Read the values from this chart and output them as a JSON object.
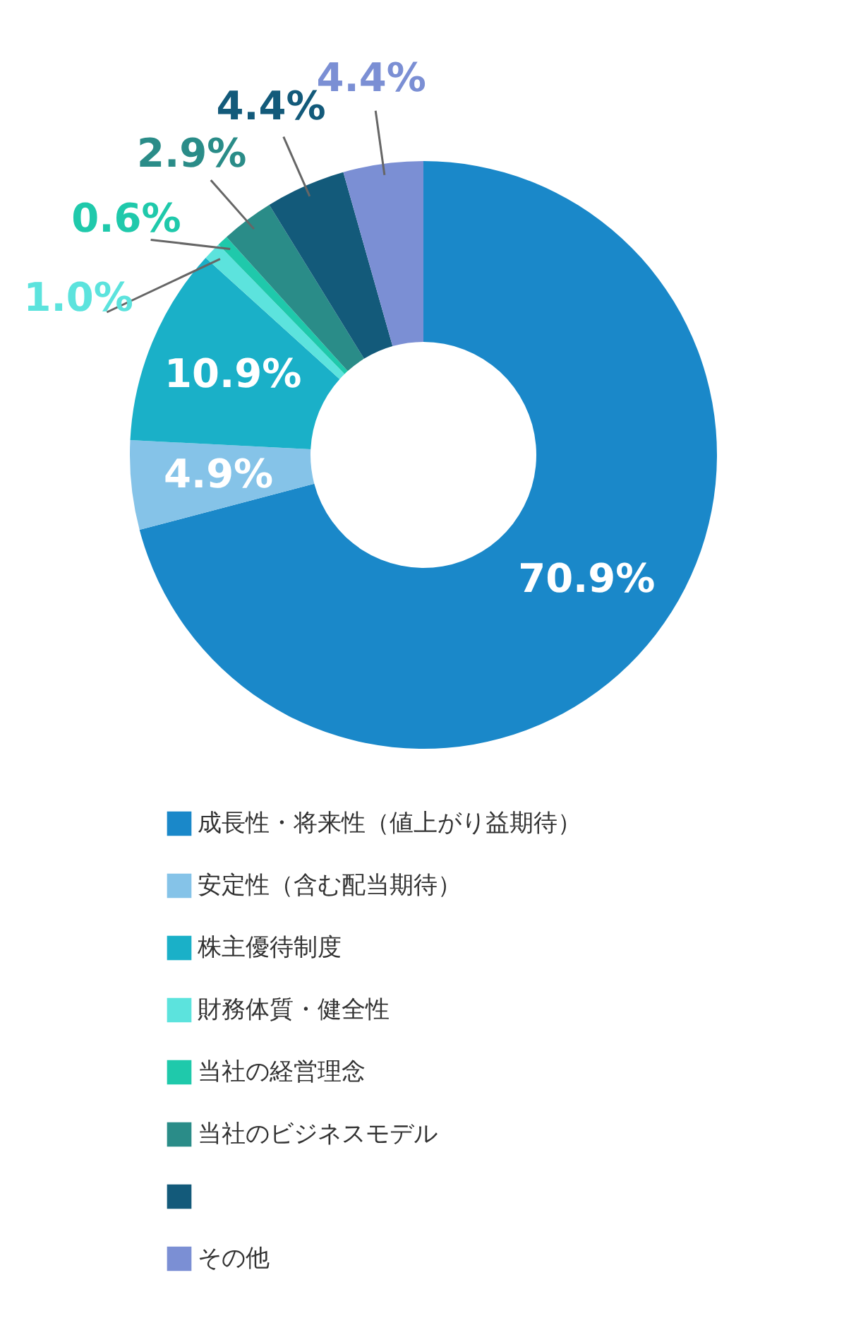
{
  "chart_data": {
    "type": "donut",
    "categories": [
      "成長性・将来性（値上がり益期待）",
      "安定性（含む配当期待）",
      "株主優待制度",
      "財務体質・健全性",
      "当社の経営理念",
      "当社のビジネスモデル",
      null,
      "その他"
    ],
    "values": [
      70.9,
      4.9,
      10.9,
      1.0,
      0.6,
      2.9,
      4.4,
      4.4
    ],
    "colors": [
      "#1a88c9",
      "#85c3e8",
      "#1ab0c8",
      "#5ce3dd",
      "#1fc9ab",
      "#2a8c88",
      "#135a7a",
      "#7b8fd4"
    ],
    "value_labels": [
      "70.9%",
      "4.9%",
      "10.9%",
      "1.0%",
      "0.6%",
      "2.9%",
      "4.4%",
      "4.4%"
    ],
    "legend": "bottom"
  }
}
